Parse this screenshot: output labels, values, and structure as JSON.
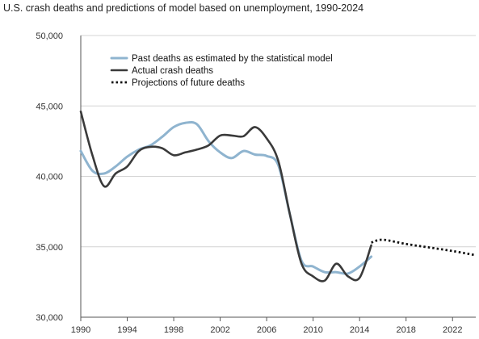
{
  "chart_data": {
    "type": "line",
    "title": "U.S. crash deaths and predictions of model based on unemployment, 1990-2024",
    "xlabel": "",
    "ylabel": "",
    "xlim": [
      1990,
      2024
    ],
    "ylim": [
      30000,
      50000
    ],
    "x_ticks": [
      1990,
      1994,
      1998,
      2002,
      2006,
      2010,
      2014,
      2018,
      2022
    ],
    "y_ticks": [
      30000,
      35000,
      40000,
      45000,
      50000
    ],
    "y_tick_labels": [
      "30,000",
      "35,000",
      "40,000",
      "45,000",
      "50,000"
    ],
    "grid": "horizontal",
    "legend_position": "top-left",
    "series": [
      {
        "name": "Past deaths as estimated by the statistical model",
        "color": "#8fb4cf",
        "style": "solid",
        "x": [
          1990,
          1991,
          1992,
          1993,
          1994,
          1995,
          1996,
          1997,
          1998,
          1999,
          2000,
          2001,
          2002,
          2003,
          2004,
          2005,
          2006,
          2007,
          2008,
          2009,
          2010,
          2011,
          2012,
          2013,
          2014,
          2015
        ],
        "values": [
          41800,
          40400,
          40200,
          40700,
          41400,
          41900,
          42200,
          42800,
          43500,
          43800,
          43700,
          42500,
          41700,
          41300,
          41800,
          41550,
          41450,
          40800,
          37300,
          34000,
          33600,
          33200,
          33200,
          33100,
          33600,
          34300
        ]
      },
      {
        "name": "Actual crash deaths",
        "color": "#3a3a3a",
        "style": "solid",
        "x": [
          1990,
          1991,
          1992,
          1993,
          1994,
          1995,
          1996,
          1997,
          1998,
          1999,
          2000,
          2001,
          2002,
          2003,
          2004,
          2005,
          2006,
          2007,
          2008,
          2009,
          2010,
          2011,
          2012,
          2013,
          2014,
          2015
        ],
        "values": [
          44600,
          41500,
          39300,
          40200,
          40700,
          41800,
          42100,
          42000,
          41500,
          41700,
          41900,
          42200,
          42900,
          42900,
          42850,
          43500,
          42700,
          41100,
          37300,
          33800,
          32900,
          32600,
          33800,
          32900,
          32800,
          35100
        ]
      },
      {
        "name": "Projections of future deaths",
        "color": "#111111",
        "style": "dotted",
        "x": [
          2015,
          2016,
          2018,
          2020,
          2022,
          2024
        ],
        "values": [
          35300,
          35500,
          35200,
          34950,
          34700,
          34400
        ]
      }
    ]
  }
}
